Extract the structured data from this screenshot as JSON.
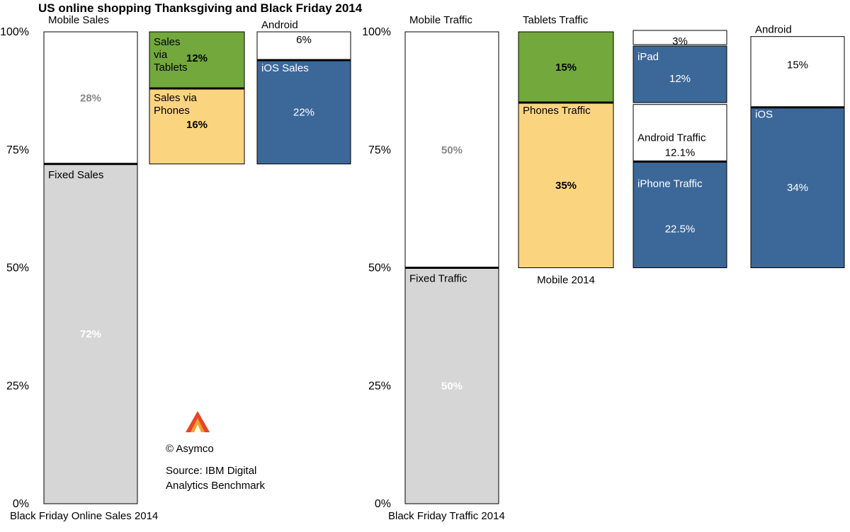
{
  "chart_data": {
    "type": "bar",
    "title": "US online shopping Thanksgiving and Black Friday 2014",
    "yticks": [
      "100%",
      "75%",
      "50%",
      "25%",
      "0%"
    ],
    "ylim": [
      0,
      100
    ],
    "panels": [
      {
        "name": "sales",
        "columns": [
          {
            "id": "sales-main",
            "label": "Black Friday Online Sales 2014",
            "segments": [
              {
                "name": "Fixed Sales",
                "value": 72,
                "display": "72%",
                "color": "#d6d6d6"
              },
              {
                "name": "Mobile Sales",
                "value": 28,
                "display": "28%",
                "color": "#ffffff"
              }
            ]
          },
          {
            "id": "sales-device",
            "label": "",
            "segments": [
              {
                "name": "Sales via Phones",
                "value": 16,
                "display": "16%",
                "color": "#fbd47f"
              },
              {
                "name": "Sales via Tablets",
                "value": 12,
                "display": "12%",
                "color": "#72a83c"
              }
            ]
          },
          {
            "id": "sales-os",
            "label": "",
            "segments": [
              {
                "name": "iOS Sales",
                "value": 22,
                "display": "22%",
                "color": "#3c6899"
              },
              {
                "name": "Android",
                "value": 6,
                "display": "6%",
                "color": "#ffffff"
              }
            ]
          }
        ]
      },
      {
        "name": "traffic",
        "columns": [
          {
            "id": "traffic-main",
            "label": "Black Friday Traffic 2014",
            "segments": [
              {
                "name": "Fixed Traffic",
                "value": 50,
                "display": "50%",
                "color": "#d6d6d6"
              },
              {
                "name": "Mobile Traffic",
                "value": 50,
                "display": "50%",
                "color": "#ffffff"
              }
            ]
          },
          {
            "id": "traffic-device",
            "label": "Mobile 2014",
            "segments": [
              {
                "name": "Phones Traffic",
                "value": 35,
                "display": "35%",
                "color": "#fbd47f"
              },
              {
                "name": "Tablets Traffic",
                "value": 15,
                "display": "15%",
                "color": "#72a83c"
              }
            ]
          },
          {
            "id": "traffic-platform",
            "label": "",
            "segments": [
              {
                "name": "iPhone Traffic",
                "value": 22.5,
                "display": "22.5%",
                "color": "#3c6899"
              },
              {
                "name": "Android Traffic",
                "value": 12.1,
                "display": "12.1%",
                "color": "#ffffff"
              },
              {
                "name": "iPad",
                "value": 12,
                "display": "12%",
                "color": "#3c6899"
              },
              {
                "name": "",
                "value": 3,
                "display": "3%",
                "color": "#ffffff"
              }
            ]
          },
          {
            "id": "traffic-os",
            "label": "",
            "segments": [
              {
                "name": "iOS",
                "value": 34,
                "display": "34%",
                "color": "#3c6899"
              },
              {
                "name": "Android",
                "value": 15,
                "display": "15%",
                "color": "#ffffff"
              }
            ]
          }
        ]
      }
    ],
    "annotations": {
      "copyright": "© Asymco",
      "source_line1": "Source: IBM Digital",
      "source_line2": "Analytics Benchmark"
    }
  }
}
